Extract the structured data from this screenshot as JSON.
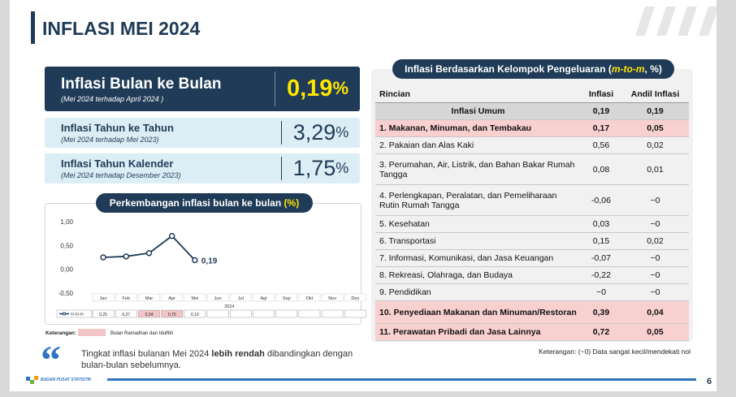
{
  "header": {
    "title": "INFLASI MEI 2024"
  },
  "cards": [
    {
      "title": "Inflasi Bulan ke Bulan",
      "subtitle": "(Mei 2024 terhadap April 2024 )",
      "value": "0,19",
      "unit": "%"
    },
    {
      "title": "Inflasi Tahun ke Tahun",
      "subtitle": "(Mei 2024 terhadap Mei 2023)",
      "value": "3,29",
      "unit": "%"
    },
    {
      "title": "Inflasi Tahun Kalender",
      "subtitle": "(Mei 2024 terhadap Desember 2023)",
      "value": "1,75",
      "unit": "%"
    }
  ],
  "chart_data": {
    "type": "line",
    "title": "Perkembangan inflasi bulan ke bulan",
    "title_unit": "(%)",
    "categories": [
      "Jan",
      "Feb",
      "Mar",
      "Apr",
      "Mei",
      "Jun",
      "Jul",
      "Agt",
      "Sep",
      "Okt",
      "Nov",
      "Des"
    ],
    "x_label": "2024",
    "series": [
      {
        "name": "m-to-m",
        "color": "#1f3b57",
        "values": [
          0.25,
          0.27,
          0.34,
          0.7,
          0.19,
          null,
          null,
          null,
          null,
          null,
          null,
          null
        ],
        "value_labels": [
          "0,25",
          "0,27",
          "0,34",
          "0,70",
          "0,19",
          null,
          null,
          null,
          null,
          null,
          null,
          null
        ]
      }
    ],
    "annotation": "0,19",
    "ylim": [
      -0.5,
      1.0
    ],
    "yticks": [
      {
        "value": 1.0,
        "label": "1,00"
      },
      {
        "value": 0.5,
        "label": "0,50"
      },
      {
        "value": 0,
        "label": "0,00"
      },
      {
        "value": -0.5,
        "label": "-0,50"
      }
    ],
    "grid": false,
    "legend_note": {
      "label": "Keterangan:",
      "text": "Bulan Ramadhan dan Idulfitri",
      "color": "#f2c6c6",
      "months": [
        "Mar",
        "Apr"
      ]
    }
  },
  "table": {
    "title": "Inflasi Berdasarkan Kelompok Pengeluaran (",
    "title_em": "m-to-m",
    "title_end": ", %)",
    "columns": [
      "Rincian",
      "Inflasi",
      "Andil Inflasi"
    ],
    "rows": [
      {
        "tone": "total",
        "cells": [
          "Inflasi Umum",
          "0,19",
          "0,19"
        ]
      },
      {
        "tone": "pink",
        "cells": [
          "1. Makanan, Minuman, dan Tembakau",
          "0,17",
          "0,05"
        ]
      },
      {
        "tone": "plain",
        "cells": [
          "2. Pakaian dan Alas Kaki",
          "0,56",
          "0,02"
        ]
      },
      {
        "tone": "plain",
        "cells": [
          "3. Perumahan, Air, Listrik, dan Bahan Bakar Rumah Tangga",
          "0,08",
          "0,01"
        ]
      },
      {
        "tone": "plain",
        "cells": [
          "4. Perlengkapan, Peralatan, dan Pemeliharaan Rutin Rumah Tangga",
          "-0,06",
          "~0"
        ]
      },
      {
        "tone": "plain",
        "cells": [
          "5. Kesehatan",
          "0,03",
          "~0"
        ]
      },
      {
        "tone": "plain",
        "cells": [
          "6. Transportasi",
          "0,15",
          "0,02"
        ]
      },
      {
        "tone": "plain",
        "cells": [
          "7. Informasi, Komunikasi, dan Jasa Keuangan",
          "-0,07",
          "~0"
        ]
      },
      {
        "tone": "plain",
        "cells": [
          "8. Rekreasi, Olahraga, dan Budaya",
          "-0,22",
          "~0"
        ]
      },
      {
        "tone": "plain",
        "cells": [
          "9. Pendidikan",
          "~0",
          "~0"
        ]
      },
      {
        "tone": "pink",
        "cells": [
          "10. Penyediaan Makanan dan Minuman/Restoran",
          "0,39",
          "0,04"
        ]
      },
      {
        "tone": "pink",
        "cells": [
          "11. Perawatan Pribadi dan Jasa Lainnya",
          "0,72",
          "0,05"
        ]
      }
    ],
    "note": "Keterangan: (~0) Data sangat kecil/mendekati nol"
  },
  "quote": {
    "before": "Tingkat inflasi bulanan Mei 2024 ",
    "bold": "lebih rendah",
    "after": " dibandingkan dengan bulan-bulan sebelumnya."
  },
  "footer": {
    "org": "BADAN PUSAT STATISTIK",
    "page": "6"
  }
}
